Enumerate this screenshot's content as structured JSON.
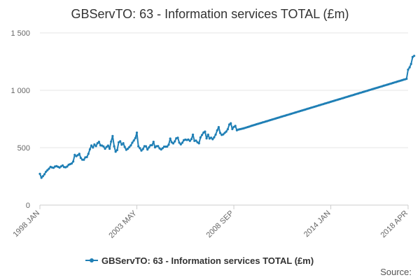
{
  "chart_data": {
    "type": "line",
    "title": "GBServTO: 63 - Information services TOTAL (£m)",
    "xlabel": "",
    "ylabel": "",
    "ylim": [
      0,
      1500
    ],
    "yticks": [
      {
        "value": 0,
        "label": "0"
      },
      {
        "value": 500,
        "label": "500"
      },
      {
        "value": 1000,
        "label": "1 000"
      },
      {
        "value": 1500,
        "label": "1 500"
      }
    ],
    "xlim": [
      0,
      243
    ],
    "xticks": [
      {
        "index": 0,
        "label": "1998 JAN"
      },
      {
        "index": 64,
        "label": "2003 MAY"
      },
      {
        "index": 128,
        "label": "2008 SEP"
      },
      {
        "index": 192,
        "label": "2014 JAN"
      },
      {
        "index": 243,
        "label": "2018 APR"
      }
    ],
    "grid": true,
    "legend": "bottom-center",
    "series": [
      {
        "name": "GBServTO: 63 - Information services TOTAL (£m)",
        "color": "#1f7fb5",
        "start": "1998 JAN",
        "frequency": "monthly",
        "values": [
          272,
          238,
          252,
          268,
          291,
          304,
          317,
          333,
          328,
          325,
          336,
          339,
          333,
          327,
          337,
          346,
          331,
          329,
          336,
          351,
          357,
          363,
          380,
          438,
          426,
          435,
          447,
          411,
          396,
          395,
          416,
          418,
          447,
          486,
          519,
          501,
          528,
          514,
          539,
          551,
          520,
          518,
          511,
          491,
          506,
          518,
          491,
          553,
          602,
          512,
          465,
          479,
          547,
          556,
          526,
          539,
          506,
          482,
          490,
          505,
          520,
          543,
          563,
          584,
          631,
          512,
          496,
          475,
          488,
          513,
          512,
          484,
          503,
          521,
          522,
          551,
          503,
          513,
          514,
          494,
          485,
          495,
          509,
          509,
          510,
          526,
          579,
          547,
          537,
          555,
          582,
          587,
          544,
          529,
          543,
          566,
          570,
          567,
          571,
          559,
          575,
          614,
          559,
          562,
          547,
          538,
          589,
          611,
          632,
          640,
          581,
          614,
          580,
          587,
          574,
          590,
          614,
          651,
          679,
          628,
          611,
          616,
          629,
          640,
          661,
          702,
          713,
          662,
          681,
          690,
          652,
          658,
          661,
          664,
          667,
          671,
          675,
          679,
          683,
          688,
          692,
          696,
          700,
          704,
          708,
          712,
          716,
          720,
          724,
          728,
          732,
          736,
          740,
          744,
          748,
          752,
          756,
          760,
          764,
          768,
          772,
          776,
          780,
          784,
          788,
          792,
          796,
          800,
          804,
          808,
          812,
          816,
          820,
          824,
          828,
          832,
          836,
          840,
          844,
          848,
          852,
          856,
          860,
          864,
          868,
          872,
          876,
          880,
          884,
          888,
          892,
          896,
          900,
          904,
          908,
          912,
          916,
          920,
          924,
          928,
          932,
          936,
          940,
          944,
          948,
          952,
          956,
          960,
          964,
          968,
          972,
          976,
          980,
          984,
          988,
          992,
          996,
          1000,
          1004,
          1008,
          1012,
          1016,
          1020,
          1024,
          1028,
          1032,
          1036,
          1040,
          1044,
          1048,
          1052,
          1056,
          1060,
          1064,
          1068,
          1072,
          1076,
          1080,
          1084,
          1088,
          1092,
          1096,
          1100,
          1180,
          1200,
          1230,
          1290,
          1300
        ]
      }
    ],
    "source_label": "Source:"
  }
}
